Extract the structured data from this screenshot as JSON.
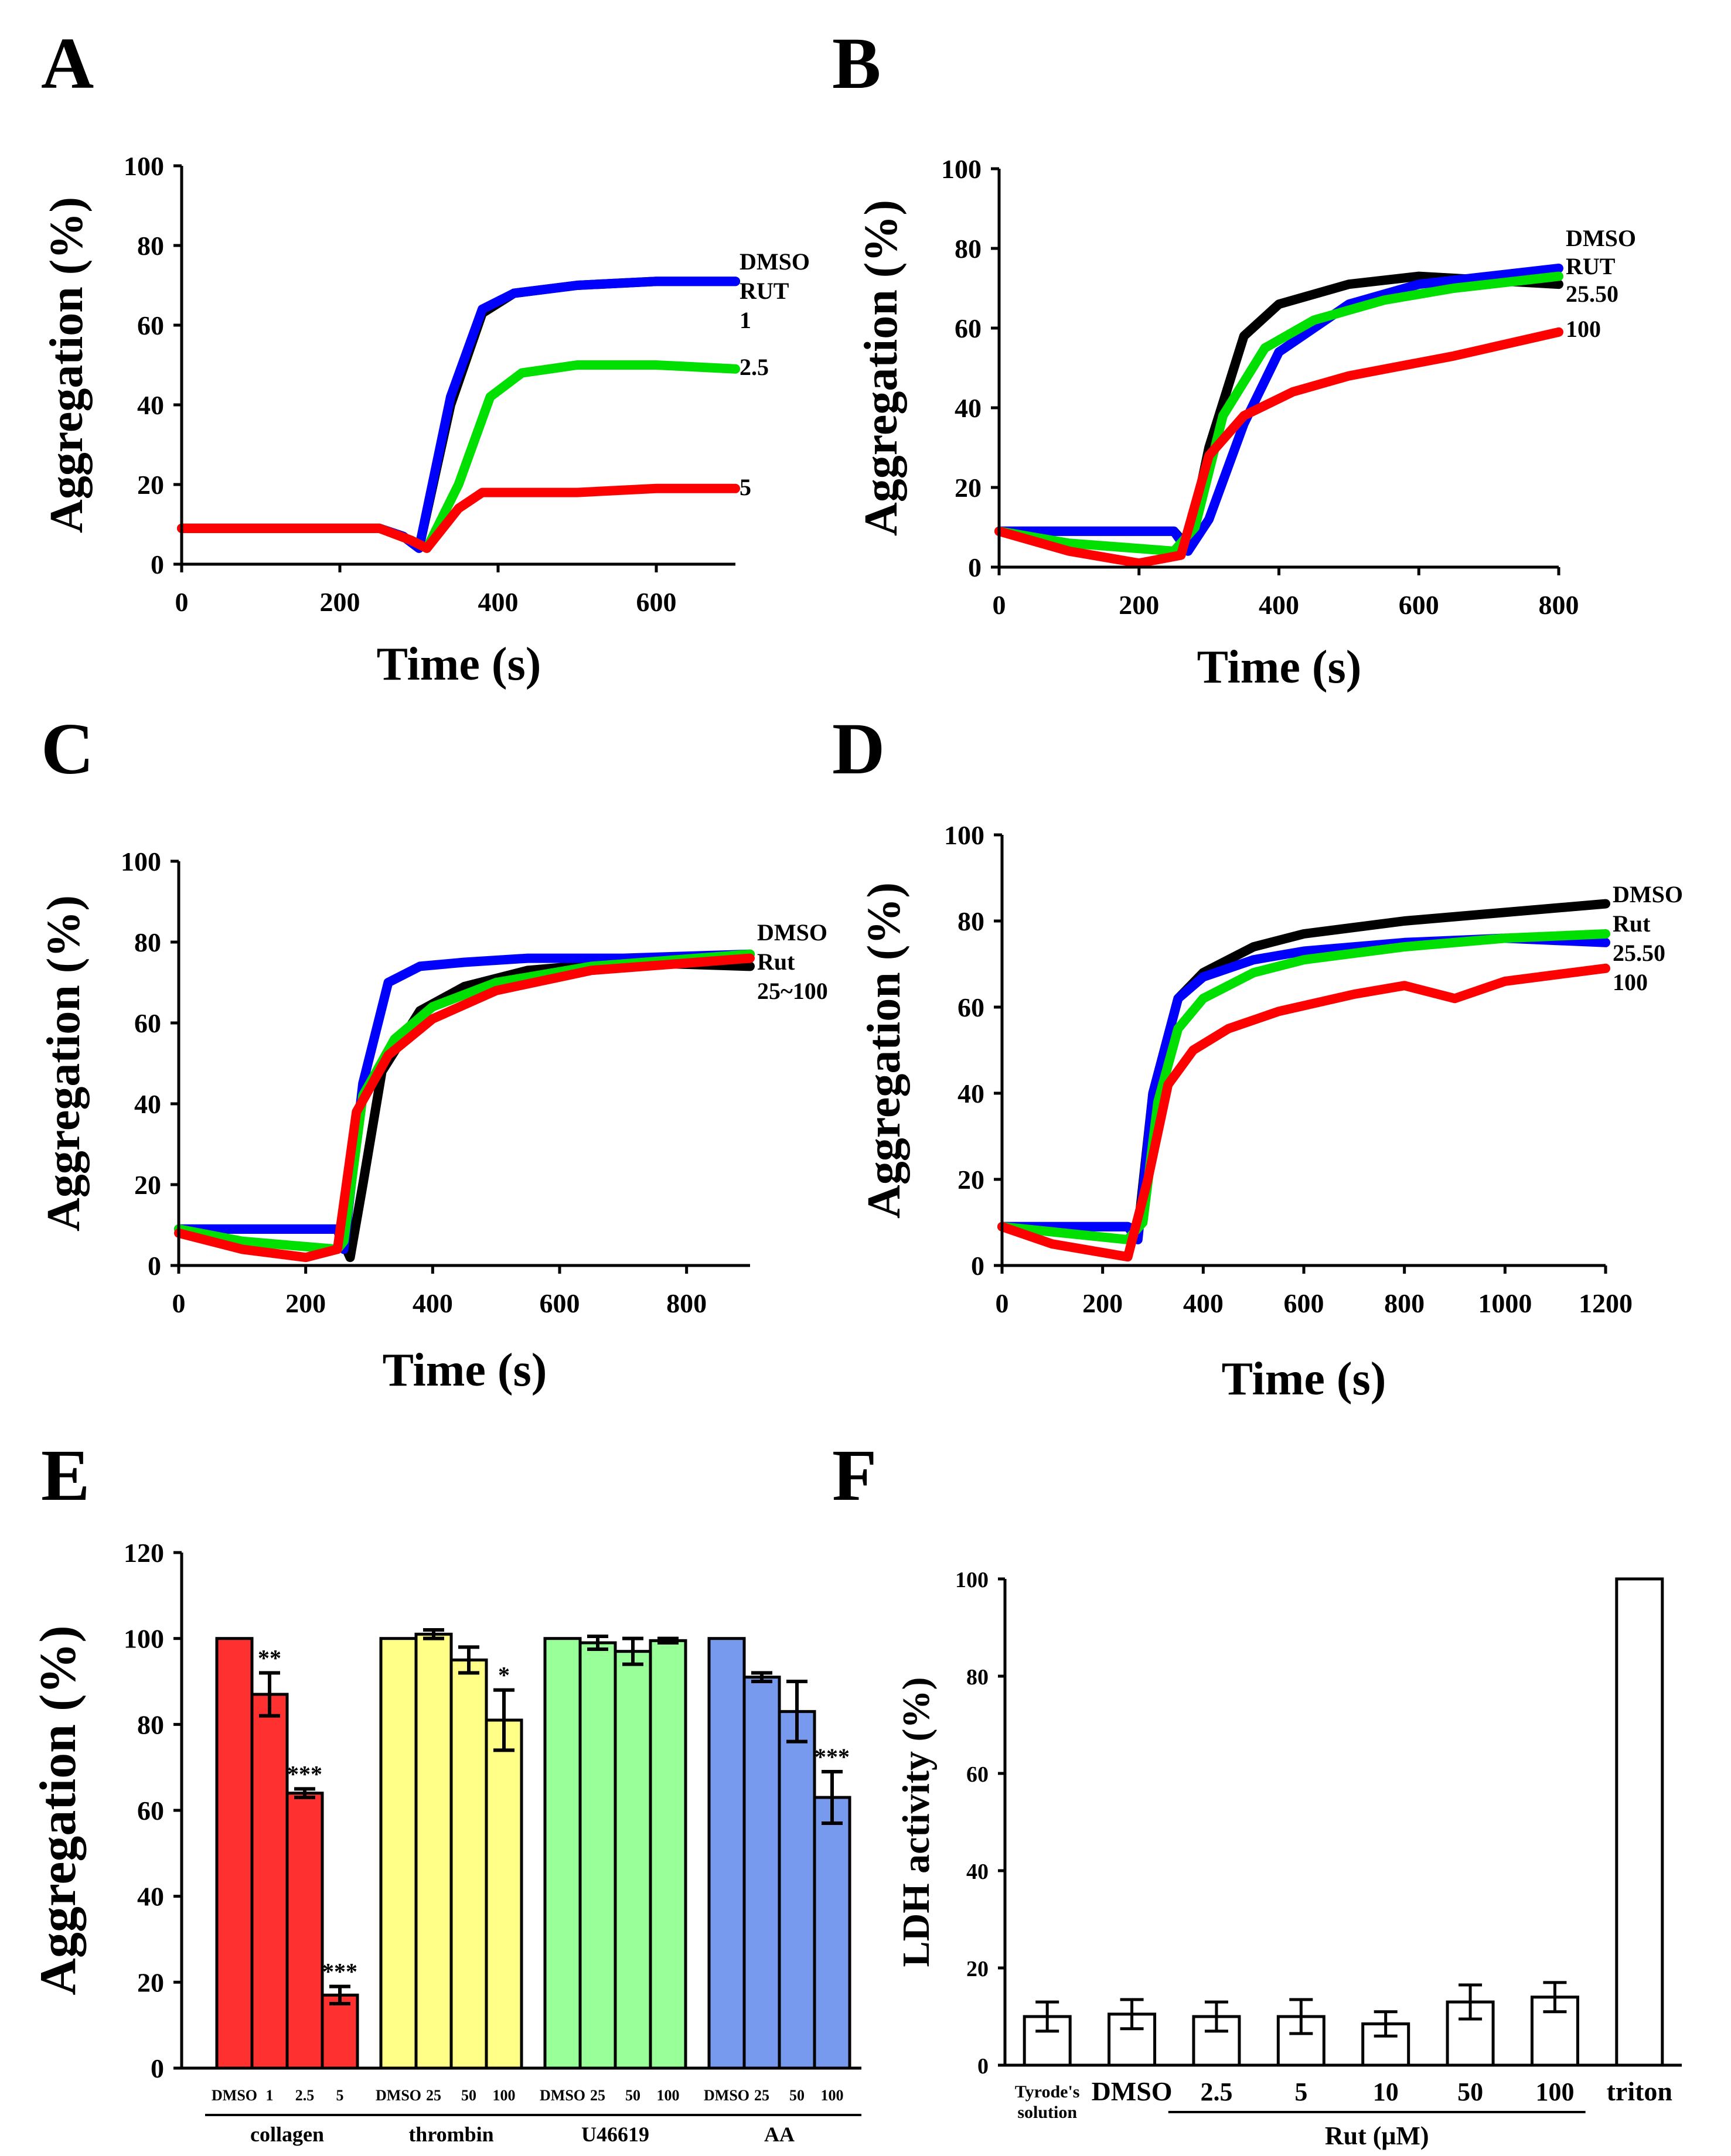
{
  "figure": {
    "panel_letters": [
      "A",
      "B",
      "C",
      "D",
      "E",
      "F"
    ]
  },
  "chart_data": [
    {
      "panel": "A",
      "type": "line",
      "xlabel": "Time (s)",
      "ylabel": "Aggregation (%)",
      "xlim": [
        0,
        700
      ],
      "ylim": [
        0,
        100
      ],
      "xticks": [
        0,
        200,
        400,
        600
      ],
      "yticks": [
        0,
        20,
        40,
        60,
        80,
        100
      ],
      "series": [
        {
          "name": "DMSO",
          "color": "#000000",
          "x": [
            0,
            250,
            280,
            300,
            340,
            380,
            420,
            500,
            600,
            700
          ],
          "y": [
            9,
            9,
            7,
            4,
            40,
            63,
            68,
            70,
            71,
            71
          ]
        },
        {
          "name": "RUT 1",
          "color": "#0000ff",
          "x": [
            0,
            250,
            280,
            300,
            340,
            380,
            420,
            500,
            600,
            700
          ],
          "y": [
            9,
            9,
            7,
            4,
            42,
            64,
            68,
            70,
            71,
            71
          ]
        },
        {
          "name": "2.5",
          "color": "#00e000",
          "x": [
            0,
            250,
            290,
            310,
            350,
            390,
            430,
            500,
            600,
            700
          ],
          "y": [
            9,
            9,
            6,
            4,
            20,
            42,
            48,
            50,
            50,
            49
          ]
        },
        {
          "name": "5",
          "color": "#ff0000",
          "x": [
            0,
            250,
            290,
            310,
            350,
            380,
            420,
            500,
            600,
            700
          ],
          "y": [
            9,
            9,
            6,
            4,
            14,
            18,
            18,
            18,
            19,
            19
          ]
        }
      ],
      "legend_labels": [
        "DMSO",
        "RUT",
        "1",
        "2.5",
        "5"
      ]
    },
    {
      "panel": "B",
      "type": "line",
      "xlabel": "Time (s)",
      "ylabel": "Aggregation (%)",
      "xlim": [
        0,
        800
      ],
      "ylim": [
        0,
        100
      ],
      "xticks": [
        0,
        200,
        400,
        600,
        800
      ],
      "yticks": [
        0,
        20,
        40,
        60,
        80,
        100
      ],
      "series": [
        {
          "name": "DMSO",
          "color": "#000000",
          "x": [
            0,
            250,
            270,
            300,
            350,
            400,
            500,
            600,
            700,
            800
          ],
          "y": [
            9,
            9,
            5,
            30,
            58,
            66,
            71,
            73,
            72,
            71
          ]
        },
        {
          "name": "RUT",
          "color": "#0000ff",
          "x": [
            0,
            250,
            270,
            300,
            350,
            400,
            500,
            600,
            700,
            800
          ],
          "y": [
            9,
            9,
            4,
            12,
            36,
            54,
            66,
            71,
            73,
            75
          ]
        },
        {
          "name": "25.50",
          "color": "#00e000",
          "x": [
            0,
            100,
            250,
            280,
            320,
            380,
            450,
            550,
            650,
            800
          ],
          "y": [
            9,
            6,
            4,
            10,
            38,
            55,
            62,
            67,
            70,
            73
          ]
        },
        {
          "name": "100",
          "color": "#ff0000",
          "x": [
            0,
            100,
            200,
            260,
            300,
            350,
            420,
            500,
            650,
            800
          ],
          "y": [
            9,
            4,
            1,
            3,
            28,
            38,
            44,
            48,
            53,
            59
          ]
        }
      ],
      "legend_labels": [
        "DMSO",
        "RUT",
        "25.50",
        "100"
      ]
    },
    {
      "panel": "C",
      "type": "line",
      "xlabel": "Time (s)",
      "ylabel": "Aggregation (%)",
      "xlim": [
        0,
        900
      ],
      "ylim": [
        0,
        100
      ],
      "xticks": [
        0,
        200,
        400,
        600,
        800
      ],
      "yticks": [
        0,
        20,
        40,
        60,
        80,
        100
      ],
      "series": [
        {
          "name": "DMSO",
          "color": "#000000",
          "x": [
            0,
            250,
            270,
            290,
            320,
            380,
            450,
            550,
            700,
            900
          ],
          "y": [
            9,
            9,
            2,
            20,
            48,
            63,
            69,
            73,
            75,
            74
          ]
        },
        {
          "name": "Rut",
          "color": "#0000ff",
          "x": [
            0,
            250,
            260,
            290,
            330,
            380,
            450,
            550,
            700,
            900
          ],
          "y": [
            9,
            9,
            4,
            45,
            70,
            74,
            75,
            76,
            76,
            77
          ]
        },
        {
          "name": "25~100 (green)",
          "color": "#00e000",
          "x": [
            0,
            100,
            250,
            260,
            290,
            340,
            400,
            500,
            650,
            900
          ],
          "y": [
            9,
            6,
            4,
            6,
            42,
            56,
            64,
            70,
            74,
            77
          ]
        },
        {
          "name": "25~100 (red)",
          "color": "#ff0000",
          "x": [
            0,
            100,
            200,
            250,
            280,
            330,
            400,
            500,
            650,
            900
          ],
          "y": [
            8,
            4,
            2,
            4,
            38,
            52,
            61,
            68,
            73,
            76
          ]
        }
      ],
      "legend_labels": [
        "DMSO",
        "Rut",
        "25~100"
      ]
    },
    {
      "panel": "D",
      "type": "line",
      "xlabel": "Time (s)",
      "ylabel": "Aggregation (%)",
      "xlim": [
        0,
        1200
      ],
      "ylim": [
        0,
        100
      ],
      "xticks": [
        0,
        200,
        400,
        600,
        800,
        1000,
        1200
      ],
      "yticks": [
        0,
        20,
        40,
        60,
        80,
        100
      ],
      "series": [
        {
          "name": "DMSO",
          "color": "#000000",
          "x": [
            0,
            250,
            270,
            300,
            350,
            400,
            500,
            600,
            800,
            1000,
            1200
          ],
          "y": [
            9,
            9,
            8,
            40,
            62,
            68,
            74,
            77,
            80,
            82,
            84
          ]
        },
        {
          "name": "Rut",
          "color": "#0000ff",
          "x": [
            0,
            250,
            270,
            300,
            350,
            400,
            500,
            600,
            800,
            1000,
            1200
          ],
          "y": [
            9,
            9,
            6,
            40,
            62,
            67,
            71,
            73,
            75,
            76,
            75
          ]
        },
        {
          "name": "25.50",
          "color": "#00e000",
          "x": [
            0,
            250,
            280,
            310,
            350,
            400,
            500,
            600,
            800,
            1000,
            1200
          ],
          "y": [
            9,
            6,
            10,
            38,
            55,
            62,
            68,
            71,
            74,
            76,
            77
          ]
        },
        {
          "name": "100",
          "color": "#ff0000",
          "x": [
            0,
            100,
            250,
            290,
            330,
            380,
            450,
            550,
            700,
            800,
            900,
            1000,
            1200
          ],
          "y": [
            9,
            5,
            2,
            20,
            42,
            50,
            55,
            59,
            63,
            65,
            62,
            66,
            69
          ]
        }
      ],
      "legend_labels": [
        "DMSO",
        "Rut",
        "25.50",
        "100"
      ]
    },
    {
      "panel": "E",
      "type": "bar",
      "ylabel": "Aggregation (%)",
      "ylim": [
        0,
        120
      ],
      "yticks": [
        0,
        20,
        40,
        60,
        80,
        100,
        120
      ],
      "groups": [
        {
          "name": "collagen",
          "color": "#ff3030",
          "categories": [
            "DMSO",
            "1",
            "2.5",
            "5"
          ],
          "values": [
            100,
            87,
            64,
            17
          ],
          "errors": [
            0,
            5,
            1,
            2
          ],
          "significance": [
            "",
            "**",
            "***",
            "***"
          ]
        },
        {
          "name": "thrombin",
          "color": "#ffff88",
          "categories": [
            "DMSO",
            "25",
            "50",
            "100"
          ],
          "values": [
            100,
            101,
            95,
            81
          ],
          "errors": [
            0,
            1,
            3,
            7
          ],
          "significance": [
            "",
            "",
            "",
            "*"
          ]
        },
        {
          "name": "U46619",
          "color": "#99ff99",
          "categories": [
            "DMSO",
            "25",
            "50",
            "100"
          ],
          "values": [
            100,
            99,
            97,
            99.5
          ],
          "errors": [
            0,
            1.5,
            3,
            0.5
          ],
          "significance": [
            "",
            "",
            "",
            ""
          ]
        },
        {
          "name": "AA",
          "color": "#7799ee",
          "categories": [
            "DMSO",
            "25",
            "50",
            "100"
          ],
          "values": [
            100,
            91,
            83,
            63
          ],
          "errors": [
            0,
            1,
            7,
            6
          ],
          "significance": [
            "",
            "",
            "",
            "***"
          ]
        }
      ]
    },
    {
      "panel": "F",
      "type": "bar",
      "ylabel": "LDH activity (%)",
      "ylim": [
        0,
        100
      ],
      "yticks": [
        0,
        20,
        40,
        60,
        80,
        100
      ],
      "categories": [
        "Tyrode's solution",
        "DMSO",
        "2.5",
        "5",
        "10",
        "50",
        "100",
        "triton"
      ],
      "values": [
        10,
        10.5,
        10,
        10,
        8.5,
        13,
        14,
        100
      ],
      "errors": [
        3,
        3,
        3,
        3.5,
        2.5,
        3.5,
        3,
        0
      ],
      "bar_color": "#ffffff",
      "group_label": "Rut (μM)"
    }
  ]
}
